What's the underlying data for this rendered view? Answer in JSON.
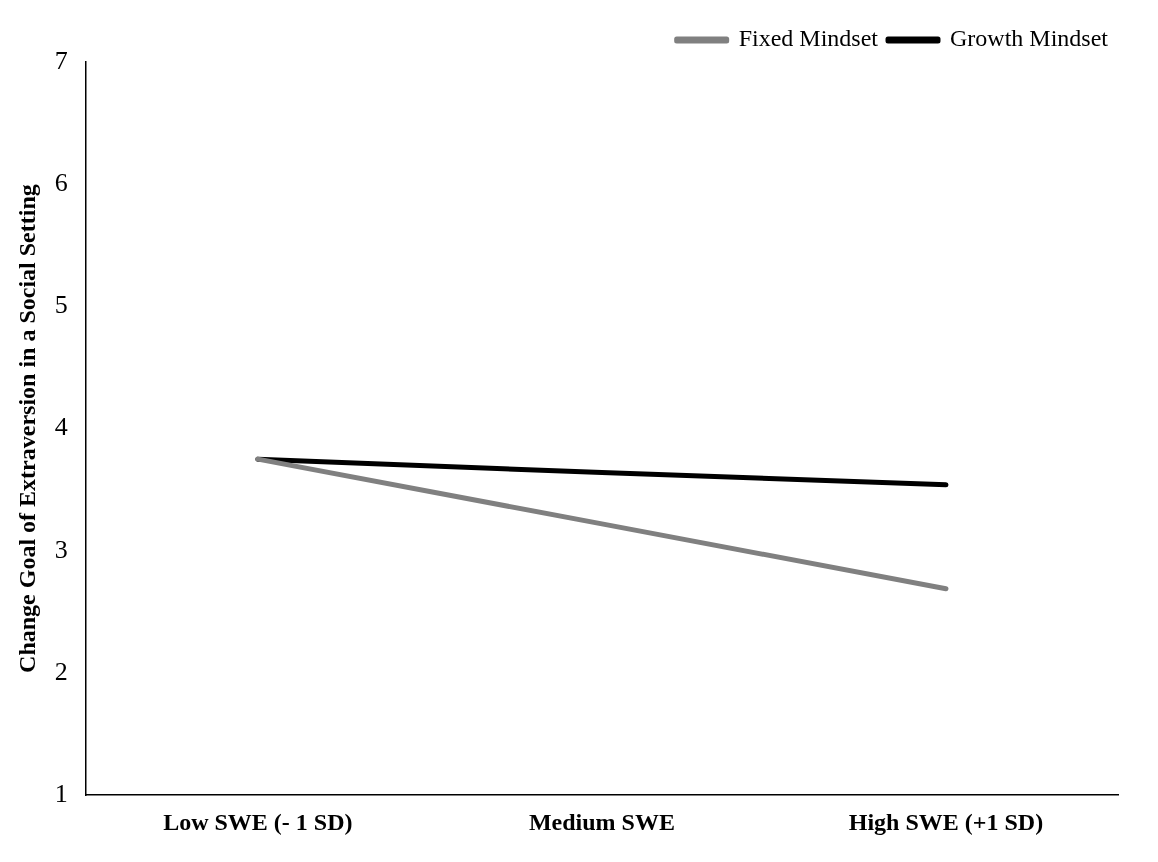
{
  "chart_data": {
    "type": "line",
    "ylabel": "Change Goal of Extraversion in a Social Setting",
    "categories": [
      "Low SWE (- 1 SD)",
      "Medium SWE",
      "High SWE (+1 SD)"
    ],
    "series": [
      {
        "name": "Fixed Mindset",
        "color": "#808080",
        "values": [
          3.75,
          3.22,
          2.69
        ]
      },
      {
        "name": "Growth Mindset",
        "color": "#000000",
        "values": [
          3.75,
          3.64,
          3.54
        ]
      }
    ],
    "ylim": [
      1,
      7
    ],
    "yticks": [
      1,
      2,
      3,
      4,
      5,
      6,
      7
    ],
    "grid": false,
    "legend": "top right",
    "marker": "none",
    "line_style": "solid"
  }
}
